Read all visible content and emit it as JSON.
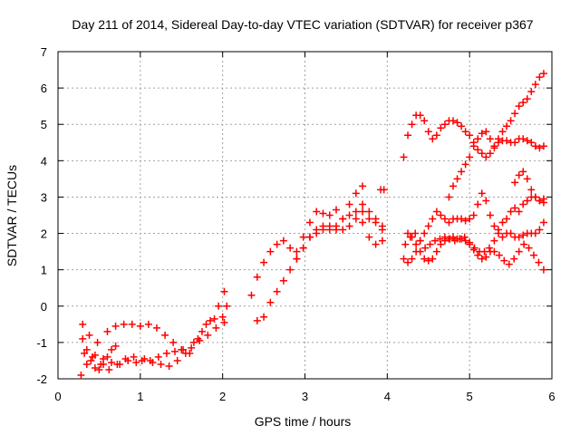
{
  "chart_data": {
    "type": "scatter",
    "title": "Day 211 of 2014, Sidereal Day-to-day VTEC variation (SDTVAR) for receiver p367",
    "xlabel": "GPS time / hours",
    "ylabel": "SDTVAR / TECUs",
    "xlim": [
      0,
      6
    ],
    "ylim": [
      -2,
      7
    ],
    "xticks": [
      "0",
      "1",
      "2",
      "3",
      "4",
      "5",
      "6"
    ],
    "yticks": [
      "-2",
      "-1",
      "0",
      "1",
      "2",
      "3",
      "4",
      "5",
      "6",
      "7"
    ],
    "grid": true,
    "legend": "none",
    "marker": "plus",
    "color": "#ff0000",
    "series": [
      {
        "x": [
          0.28,
          0.35,
          0.45,
          0.55,
          0.65,
          0.75,
          0.85,
          0.95,
          1.05,
          1.15,
          1.25,
          1.35,
          1.45,
          1.55,
          1.65,
          1.75,
          1.85,
          1.95,
          2.02
        ],
        "y": [
          -1.9,
          -1.6,
          -1.35,
          -1.45,
          -1.55,
          -1.6,
          -1.5,
          -1.55,
          -1.45,
          -1.55,
          -1.6,
          -1.65,
          -1.5,
          -1.3,
          -1.0,
          -0.7,
          -0.4,
          0.0,
          0.4
        ]
      },
      {
        "x": [
          0.3,
          0.38,
          0.48,
          0.6,
          0.7,
          0.8,
          0.9,
          1.0,
          1.1,
          1.2,
          1.3,
          1.4,
          1.5,
          1.6,
          1.7,
          1.8,
          1.9,
          2.0,
          2.05
        ],
        "y": [
          -0.5,
          -0.8,
          -1.0,
          -0.7,
          -0.55,
          -0.5,
          -0.5,
          -0.55,
          -0.5,
          -0.6,
          -0.8,
          -1.0,
          -1.2,
          -1.3,
          -0.9,
          -0.5,
          -0.35,
          -0.3,
          0.0
        ]
      },
      {
        "x": [
          0.32,
          0.42,
          0.52,
          0.62,
          0.72,
          0.82,
          0.92,
          1.02,
          1.12,
          1.22,
          1.32,
          1.42,
          1.52,
          1.62,
          1.72,
          1.82,
          1.92,
          2.02
        ],
        "y": [
          -1.3,
          -1.4,
          -1.6,
          -1.75,
          -1.6,
          -1.45,
          -1.4,
          -1.5,
          -1.5,
          -1.4,
          -1.3,
          -1.25,
          -1.2,
          -1.15,
          -0.95,
          -0.8,
          -0.6,
          -0.45
        ]
      },
      {
        "x": [
          0.3,
          0.35,
          0.4,
          0.45,
          0.5,
          0.55,
          0.6,
          0.65,
          0.7
        ],
        "y": [
          -0.9,
          -1.2,
          -1.5,
          -1.7,
          -1.75,
          -1.6,
          -1.4,
          -1.2,
          -1.1
        ]
      },
      {
        "x": [
          2.35,
          2.42,
          2.5,
          2.58,
          2.66,
          2.74,
          2.82,
          2.9,
          2.98,
          3.06,
          3.14,
          3.22,
          3.3,
          3.38,
          3.46,
          3.54,
          3.62,
          3.7
        ],
        "y": [
          0.3,
          0.8,
          1.2,
          1.5,
          1.7,
          1.8,
          1.6,
          1.5,
          1.9,
          2.3,
          2.6,
          2.55,
          2.5,
          2.65,
          2.4,
          2.8,
          3.1,
          3.3
        ]
      },
      {
        "x": [
          2.42,
          2.5,
          2.58,
          2.66,
          2.74,
          2.82,
          2.9,
          2.98,
          3.06,
          3.14,
          3.22,
          3.3,
          3.38,
          3.46,
          3.54,
          3.62,
          3.7,
          3.78,
          3.86,
          3.94
        ],
        "y": [
          -0.4,
          -0.3,
          0.1,
          0.4,
          0.7,
          1.0,
          1.3,
          1.6,
          1.9,
          2.0,
          2.1,
          2.2,
          2.1,
          2.1,
          2.2,
          2.4,
          2.3,
          1.9,
          1.7,
          1.8
        ]
      },
      {
        "x": [
          2.9,
          2.98,
          3.06,
          3.14,
          3.22,
          3.3,
          3.38,
          3.46,
          3.54,
          3.62,
          3.7,
          3.78,
          3.86,
          3.94
        ],
        "y": [
          1.3,
          1.6,
          1.9,
          2.1,
          2.2,
          2.1,
          2.2,
          2.4,
          2.5,
          2.6,
          2.8,
          2.6,
          2.4,
          2.2
        ]
      },
      {
        "x": [
          3.7,
          3.78,
          3.86,
          3.94
        ],
        "y": [
          2.6,
          2.4,
          2.3,
          2.1
        ]
      },
      {
        "x": [
          3.92,
          3.96
        ],
        "y": [
          3.2,
          3.2
        ]
      },
      {
        "x": [
          4.2,
          4.25,
          4.3,
          4.35,
          4.4,
          4.45,
          4.5,
          4.55,
          4.6,
          4.65,
          4.7,
          4.75,
          4.8,
          4.85,
          4.9,
          4.95,
          5.0,
          5.05,
          5.1,
          5.15,
          5.2,
          5.25,
          5.3,
          5.35,
          5.4,
          5.45,
          5.5,
          5.55,
          5.6,
          5.65,
          5.7,
          5.75,
          5.8,
          5.85,
          5.9
        ],
        "y": [
          4.1,
          4.7,
          5.0,
          5.25,
          5.25,
          5.1,
          4.8,
          4.6,
          4.7,
          4.9,
          5.0,
          5.1,
          5.1,
          5.05,
          4.95,
          4.8,
          4.7,
          4.5,
          4.3,
          4.2,
          4.1,
          4.2,
          4.35,
          4.5,
          4.55,
          4.55,
          4.5,
          4.5,
          4.6,
          4.6,
          4.55,
          4.5,
          4.4,
          4.35,
          4.4
        ]
      },
      {
        "x": [
          4.75,
          4.8,
          4.85,
          4.9,
          4.95,
          5.0,
          5.05,
          5.1,
          5.15,
          5.2,
          5.25,
          5.3,
          5.35,
          5.4,
          5.45,
          5.5,
          5.55,
          5.6,
          5.65,
          5.7,
          5.75,
          5.8,
          5.85,
          5.9
        ],
        "y": [
          3.0,
          3.3,
          3.5,
          3.7,
          3.9,
          4.1,
          4.4,
          4.6,
          4.75,
          4.8,
          4.6,
          4.4,
          4.6,
          4.8,
          4.95,
          5.1,
          5.3,
          5.5,
          5.6,
          5.7,
          5.9,
          6.1,
          6.3,
          6.4
        ]
      },
      {
        "x": [
          4.2,
          4.25,
          4.3,
          4.35,
          4.4,
          4.45,
          4.5,
          4.55,
          4.6,
          4.65,
          4.7,
          4.75,
          4.8,
          4.85,
          4.9,
          4.95,
          5.0,
          5.05,
          5.1,
          5.15,
          5.2,
          5.25,
          5.3,
          5.35,
          5.4,
          5.45,
          5.5,
          5.55,
          5.6,
          5.65,
          5.7,
          5.75,
          5.8,
          5.85,
          5.9
        ],
        "y": [
          1.3,
          1.2,
          1.3,
          1.5,
          1.8,
          2.0,
          2.2,
          2.4,
          2.6,
          2.5,
          2.4,
          2.3,
          2.4,
          2.4,
          2.4,
          2.35,
          2.4,
          2.5,
          2.8,
          3.1,
          2.9,
          2.5,
          2.2,
          2.0,
          1.9,
          2.0,
          2.0,
          1.9,
          1.9,
          1.95,
          2.0,
          2.0,
          2.0,
          2.1,
          2.3
        ]
      },
      {
        "x": [
          4.22,
          4.28,
          4.34,
          4.4,
          4.46,
          4.52,
          4.58,
          4.64,
          4.7,
          4.76,
          4.82,
          4.88,
          4.94,
          5.0,
          5.06,
          5.12,
          5.18,
          5.24,
          5.3,
          5.36,
          5.42,
          5.48,
          5.54,
          5.6,
          5.66,
          5.72,
          5.78,
          5.84,
          5.9
        ],
        "y": [
          1.7,
          1.9,
          2.0,
          1.8,
          1.6,
          1.7,
          1.8,
          1.85,
          1.9,
          1.85,
          1.8,
          1.85,
          1.9,
          1.75,
          1.6,
          1.5,
          1.5,
          1.6,
          1.5,
          1.4,
          1.25,
          1.15,
          1.3,
          1.5,
          1.7,
          1.6,
          1.4,
          1.2,
          1.0
        ]
      },
      {
        "x": [
          4.25,
          4.3,
          4.35,
          4.4,
          4.45,
          4.5,
          4.55,
          4.6,
          4.65,
          4.7,
          4.75,
          4.8,
          4.85,
          4.9,
          4.95,
          5.0,
          5.05,
          5.1,
          5.15,
          5.2,
          5.25,
          5.3,
          5.35,
          5.4,
          5.45,
          5.5,
          5.55,
          5.6,
          5.65,
          5.7,
          5.75,
          5.8,
          5.85,
          5.9
        ],
        "y": [
          2.0,
          1.9,
          1.7,
          1.5,
          1.3,
          1.25,
          1.3,
          1.5,
          1.7,
          1.8,
          1.85,
          1.9,
          1.85,
          1.85,
          1.8,
          1.7,
          1.55,
          1.4,
          1.3,
          1.35,
          1.5,
          1.8,
          2.1,
          2.3,
          2.4,
          2.6,
          2.7,
          2.6,
          2.8,
          2.9,
          3.0,
          3.0,
          2.9,
          2.85
        ]
      },
      {
        "x": [
          5.55,
          5.6,
          5.65,
          5.7,
          5.75,
          5.8,
          5.85,
          5.9
        ],
        "y": [
          3.4,
          3.6,
          3.7,
          3.5,
          3.2,
          3.0,
          2.9,
          2.95
        ]
      }
    ]
  }
}
